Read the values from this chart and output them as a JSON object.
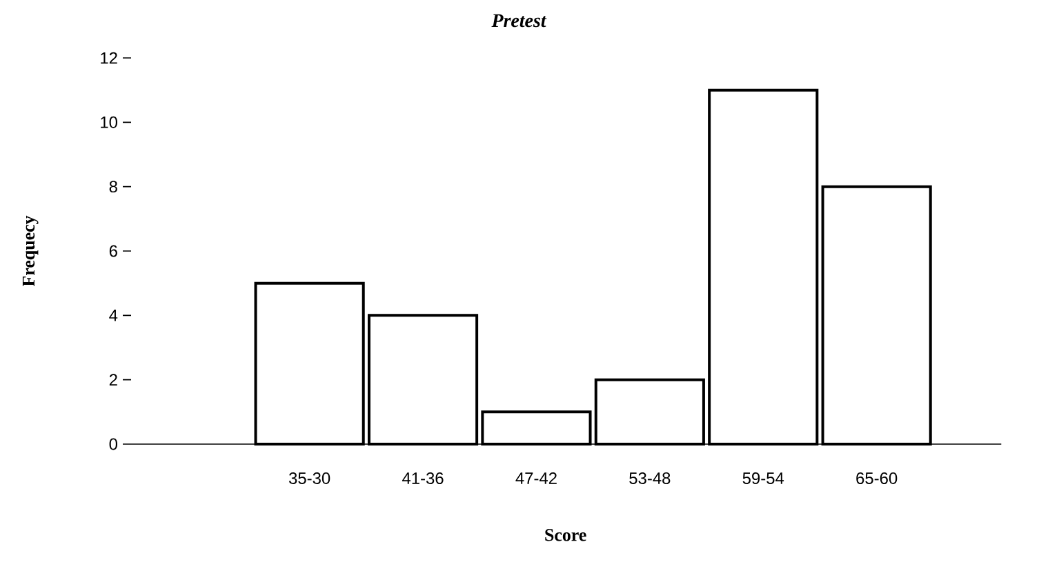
{
  "chart_data": {
    "type": "bar",
    "title": "Pretest",
    "xlabel": "Score",
    "ylabel": "Frequecy",
    "categories": [
      "35-30",
      "41-36",
      "47-42",
      "53-48",
      "59-54",
      "65-60"
    ],
    "values": [
      5,
      4,
      1,
      2,
      11,
      8
    ],
    "color": "#ffffff",
    "ylim": [
      0,
      12
    ],
    "yticks": [
      0,
      2,
      4,
      6,
      8,
      10,
      12
    ]
  }
}
